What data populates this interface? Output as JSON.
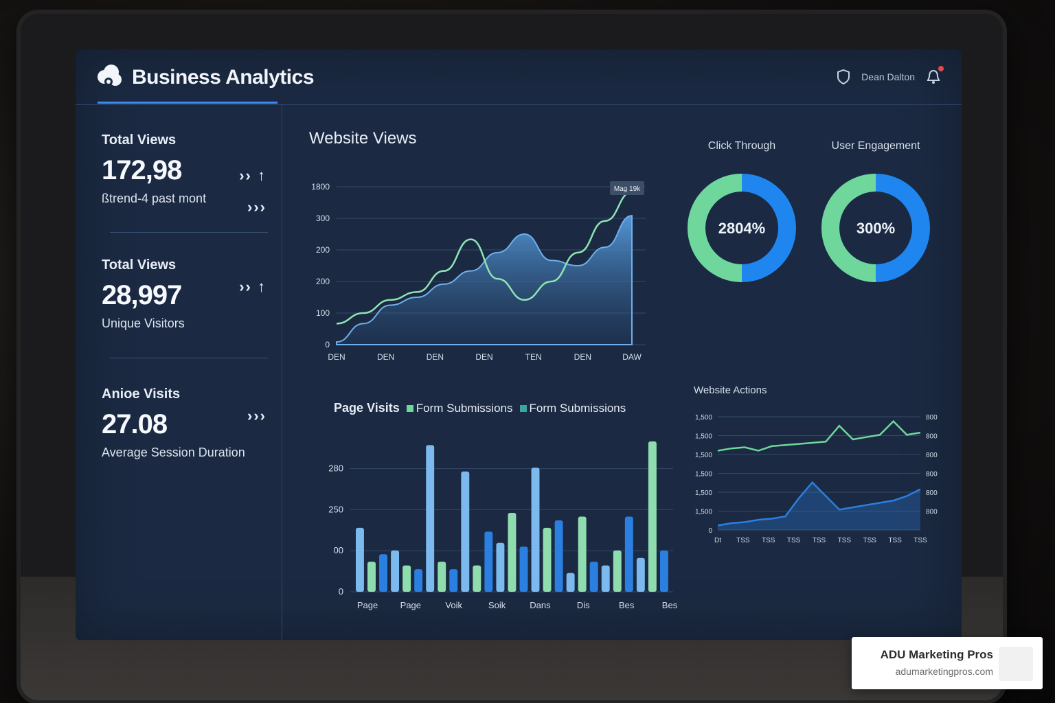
{
  "app": {
    "title": "Business Analytics",
    "user_label": "Dean Dalton",
    "accent_color": "#3b8cf0",
    "icons": {
      "logo": "cloud-logo-icon",
      "shield": "shield-icon",
      "notifications": "bell-icon"
    }
  },
  "sidebar": {
    "stats": [
      {
        "label": "Total Views",
        "value": "172,98",
        "sub": "ßtrend-4 past mont",
        "arrows": "›› ↑"
      },
      {
        "label": "Total Views",
        "value": "28,997",
        "sub": "Unique Visitors",
        "arrows": "›› ↑"
      },
      {
        "label": "Anioe Visits",
        "value": "27.08",
        "sub": "Average Session Duration",
        "arrows": "›››"
      }
    ],
    "extra_arrows": "›››"
  },
  "website_views": {
    "title": "Website Views",
    "tooltip": "Mag 19k",
    "chart_data": {
      "type": "area",
      "y_ticks": [
        "0",
        "100",
        "200",
        "200",
        "300",
        "1800"
      ],
      "x_ticks": [
        "DEN",
        "DEN",
        "DEN",
        "DEN",
        "TEN",
        "DEN",
        "DAW"
      ],
      "series": [
        {
          "values": [
            5,
            40,
            75,
            90,
            115,
            140,
            175,
            210,
            160,
            150,
            185,
            245
          ]
        },
        {
          "values": [
            40,
            60,
            85,
            100,
            140,
            200,
            125,
            85,
            120,
            175,
            235,
            290
          ]
        }
      ],
      "colors": [
        "#4c8fd6",
        "#8fe4b3"
      ]
    }
  },
  "donuts": [
    {
      "title": "Click Through",
      "value_text": "2804%",
      "share_green": 0.5,
      "colors": [
        "#6fd79c",
        "#1f86f0"
      ]
    },
    {
      "title": "User Engagement",
      "value_text": "300%",
      "share_green": 0.5,
      "colors": [
        "#6fd79c",
        "#1f86f0"
      ]
    }
  ],
  "page_visits": {
    "title": "Page Visits",
    "legend": [
      {
        "label": "Form Submissions",
        "color": "#6fd79c"
      },
      {
        "label": "Form Submissions",
        "color": "#3aa6a0"
      }
    ],
    "chart_data": {
      "type": "bar",
      "y_ticks": [
        "0",
        "00",
        "250",
        "280"
      ],
      "x_ticks": [
        "Page",
        "Page",
        "Voik",
        "Soik",
        "Dans",
        "Dis",
        "Bes",
        "Bes"
      ],
      "values": [
        170,
        80,
        100,
        110,
        70,
        60,
        390,
        80,
        60,
        320,
        70,
        160,
        130,
        210,
        120,
        330,
        170,
        190,
        50,
        200,
        80,
        70,
        110,
        200,
        90,
        400,
        110
      ],
      "colors": [
        "#7cb9ee",
        "#8fdcae",
        "#2b7fe0"
      ]
    }
  },
  "website_actions": {
    "title": "Website Actions",
    "chart_data": {
      "type": "line",
      "y_ticks": [
        "0",
        "1,500",
        "1,500",
        "1,500",
        "1,500",
        "1,500",
        "1,500"
      ],
      "x_ticks": [
        "Dt",
        "TSS",
        "TSS",
        "TSS",
        "TSS",
        "TSS",
        "TSS",
        "TSS",
        "TSS"
      ],
      "right_ticks": [
        "800",
        "800",
        "800",
        "800",
        "800",
        "800"
      ],
      "series": [
        {
          "values": [
            70,
            72,
            73,
            70,
            74,
            75,
            76,
            77,
            78,
            92,
            80,
            82,
            84,
            96,
            84,
            86
          ]
        },
        {
          "values": [
            4,
            6,
            7,
            9,
            10,
            12,
            28,
            42,
            30,
            18,
            20,
            22,
            24,
            26,
            30,
            36
          ]
        }
      ],
      "colors": [
        "#6fd79c",
        "#2b7fe0"
      ]
    }
  },
  "brand": {
    "name": "ADU Marketing Pros",
    "url": "adumarketingpros.com"
  }
}
